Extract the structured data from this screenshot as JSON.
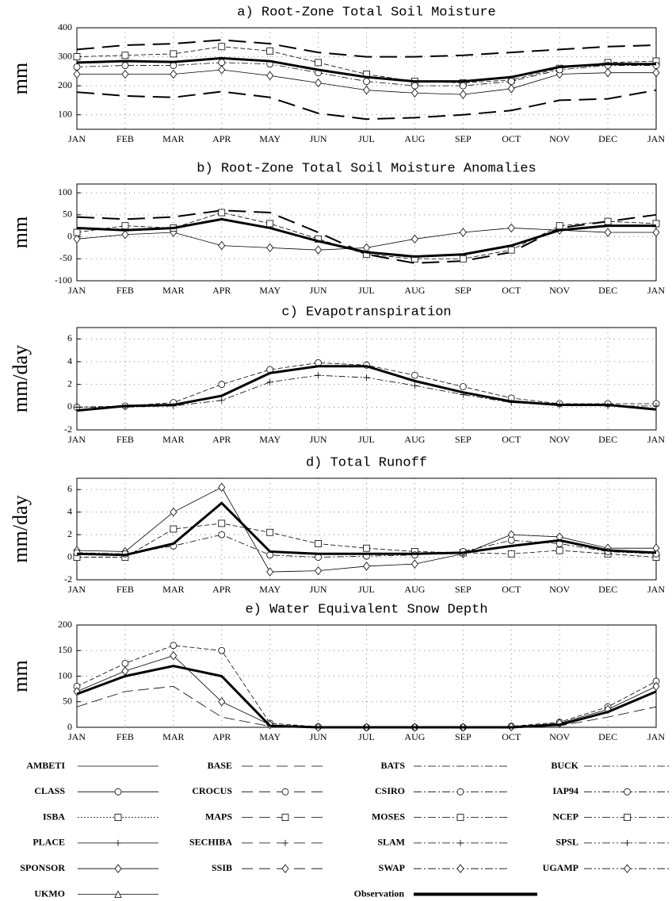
{
  "chart_data": [
    {
      "type": "line",
      "title": "a) Root-Zone Total Soil Moisture",
      "y_label": "mm",
      "categories": [
        "JAN",
        "FEB",
        "MAR",
        "APR",
        "MAY",
        "JUN",
        "JUL",
        "AUG",
        "SEP",
        "OCT",
        "NOV",
        "DEC",
        "JAN"
      ],
      "ylim": [
        50,
        400
      ],
      "yticks": [
        100,
        200,
        300,
        400
      ],
      "grid": true,
      "series": [
        {
          "color": "#000",
          "dash": "22 10",
          "width": 2,
          "marker": "none",
          "values": [
            325,
            340,
            345,
            358,
            345,
            315,
            300,
            300,
            305,
            315,
            325,
            335,
            340
          ]
        },
        {
          "color": "#000",
          "dash": "22 10",
          "width": 2,
          "marker": "none",
          "values": [
            178,
            165,
            160,
            180,
            160,
            105,
            85,
            90,
            100,
            115,
            150,
            155,
            185
          ]
        },
        {
          "color": "#000",
          "dash": "6 3",
          "width": 0.8,
          "marker": "square",
          "values": [
            300,
            305,
            310,
            335,
            320,
            280,
            240,
            215,
            210,
            220,
            260,
            280,
            285
          ]
        },
        {
          "color": "#000",
          "dash": "",
          "width": 0.8,
          "marker": "diamond",
          "values": [
            240,
            240,
            240,
            255,
            235,
            210,
            185,
            175,
            170,
            190,
            240,
            245,
            245
          ]
        },
        {
          "color": "#000",
          "dash": "8 3 2 3",
          "width": 0.8,
          "marker": "circle",
          "values": [
            265,
            270,
            270,
            280,
            275,
            245,
            215,
            200,
            200,
            215,
            255,
            270,
            270
          ]
        },
        {
          "name": "Observation",
          "color": "#000",
          "dash": "",
          "width": 3,
          "marker": "none",
          "values": [
            280,
            285,
            282,
            295,
            285,
            255,
            230,
            215,
            215,
            230,
            265,
            275,
            275
          ]
        }
      ]
    },
    {
      "type": "line",
      "title": "b) Root-Zone Total Soil Moisture Anomalies",
      "y_label": "mm",
      "categories": [
        "JAN",
        "FEB",
        "MAR",
        "APR",
        "MAY",
        "JUN",
        "JUL",
        "AUG",
        "SEP",
        "OCT",
        "NOV",
        "DEC",
        "JAN"
      ],
      "ylim": [
        -100,
        120
      ],
      "yticks": [
        -100,
        -50,
        0,
        50,
        100
      ],
      "grid": true,
      "series": [
        {
          "color": "#000",
          "dash": "22 10",
          "width": 2,
          "marker": "none",
          "values": [
            45,
            40,
            45,
            60,
            55,
            10,
            -40,
            -60,
            -55,
            -35,
            20,
            35,
            50
          ]
        },
        {
          "color": "#000",
          "dash": "",
          "width": 0.8,
          "marker": "diamond",
          "values": [
            -5,
            5,
            10,
            -20,
            -25,
            -30,
            -25,
            -5,
            10,
            20,
            15,
            10,
            10
          ]
        },
        {
          "color": "#000",
          "dash": "6 3",
          "width": 0.8,
          "marker": "square",
          "values": [
            10,
            25,
            20,
            55,
            30,
            -5,
            -40,
            -50,
            -50,
            -30,
            25,
            35,
            30
          ]
        },
        {
          "name": "Observation",
          "color": "#000",
          "dash": "",
          "width": 3,
          "marker": "none",
          "values": [
            20,
            15,
            20,
            40,
            20,
            -10,
            -35,
            -45,
            -40,
            -20,
            15,
            25,
            25
          ]
        }
      ]
    },
    {
      "type": "line",
      "title": "c) Evapotranspiration",
      "y_label": "mm/day",
      "categories": [
        "JAN",
        "FEB",
        "MAR",
        "APR",
        "MAY",
        "JUN",
        "JUL",
        "AUG",
        "SEP",
        "OCT",
        "NOV",
        "DEC",
        "JAN"
      ],
      "ylim": [
        -2,
        7
      ],
      "yticks": [
        -2,
        0,
        2,
        4,
        6
      ],
      "grid": true,
      "series": [
        {
          "color": "#000",
          "dash": "6 3",
          "width": 0.8,
          "marker": "circle",
          "values": [
            0,
            0.1,
            0.4,
            2,
            3.3,
            3.9,
            3.7,
            2.8,
            1.8,
            0.8,
            0.3,
            0.3,
            0.3
          ]
        },
        {
          "color": "#000",
          "dash": "8 3 2 3",
          "width": 0.8,
          "marker": "plus",
          "values": [
            0,
            0,
            0.1,
            0.6,
            2.2,
            2.8,
            2.6,
            1.9,
            1.1,
            0.4,
            0.2,
            0.1,
            0.1
          ]
        },
        {
          "name": "Observation",
          "color": "#000",
          "dash": "",
          "width": 3,
          "marker": "none",
          "values": [
            -0.3,
            0.1,
            0.2,
            1,
            3,
            3.6,
            3.6,
            2.3,
            1.3,
            0.5,
            0.2,
            0.2,
            -0.2
          ]
        }
      ]
    },
    {
      "type": "line",
      "title": "d) Total Runoff",
      "y_label": "mm/day",
      "categories": [
        "JAN",
        "FEB",
        "MAR",
        "APR",
        "MAY",
        "JUN",
        "JUL",
        "AUG",
        "SEP",
        "OCT",
        "NOV",
        "DEC",
        "JAN"
      ],
      "ylim": [
        -2,
        7
      ],
      "yticks": [
        -2,
        0,
        2,
        4,
        6
      ],
      "grid": true,
      "series": [
        {
          "color": "#000",
          "dash": "",
          "width": 0.8,
          "marker": "diamond",
          "values": [
            0.6,
            0.5,
            4,
            6.2,
            -1.3,
            -1.2,
            -0.8,
            -0.6,
            0.3,
            2,
            1.8,
            0.8,
            0.8
          ]
        },
        {
          "color": "#000",
          "dash": "6 3",
          "width": 0.8,
          "marker": "square",
          "values": [
            0,
            0,
            2.5,
            3,
            2.2,
            1.2,
            0.8,
            0.5,
            0.4,
            0.3,
            0.6,
            0.3,
            0
          ]
        },
        {
          "color": "#000",
          "dash": "8 3 2 3",
          "width": 0.8,
          "marker": "circle",
          "values": [
            0.4,
            0.3,
            1,
            2,
            0.2,
            0,
            0.1,
            0.2,
            0.5,
            1.5,
            1.2,
            0.5,
            0.3
          ]
        },
        {
          "name": "Observation",
          "color": "#000",
          "dash": "",
          "width": 3,
          "marker": "none",
          "values": [
            0.3,
            0.2,
            1.2,
            4.8,
            0.5,
            0.3,
            0.3,
            0.3,
            0.4,
            1,
            1.5,
            0.6,
            0.4
          ]
        }
      ]
    },
    {
      "type": "line",
      "title": "e) Water Equivalent Snow Depth",
      "y_label": "mm",
      "categories": [
        "JAN",
        "FEB",
        "MAR",
        "APR",
        "MAY",
        "JUN",
        "JUL",
        "AUG",
        "SEP",
        "OCT",
        "NOV",
        "DEC",
        "JAN"
      ],
      "ylim": [
        0,
        200
      ],
      "yticks": [
        0,
        50,
        100,
        150,
        200
      ],
      "grid": true,
      "series": [
        {
          "color": "#000",
          "dash": "6 3",
          "width": 0.8,
          "marker": "circle",
          "values": [
            80,
            125,
            160,
            150,
            8,
            1,
            0,
            0,
            0,
            2,
            10,
            40,
            90
          ]
        },
        {
          "color": "#000",
          "dash": "14 6",
          "width": 0.8,
          "marker": "none",
          "values": [
            40,
            70,
            80,
            20,
            2,
            0,
            0,
            0,
            0,
            0,
            3,
            20,
            40
          ]
        },
        {
          "color": "#000",
          "dash": "",
          "width": 0.8,
          "marker": "diamond",
          "values": [
            70,
            110,
            140,
            50,
            5,
            0,
            0,
            0,
            0,
            1,
            8,
            35,
            80
          ]
        },
        {
          "name": "Observation",
          "color": "#000",
          "dash": "",
          "width": 3,
          "marker": "none",
          "values": [
            65,
            100,
            120,
            100,
            3,
            0,
            0,
            0,
            0,
            0,
            5,
            30,
            70
          ]
        }
      ]
    }
  ],
  "legend": [
    {
      "name": "AMBETI",
      "dash": "",
      "marker": "none"
    },
    {
      "name": "BASE",
      "dash": "14 8",
      "marker": "none"
    },
    {
      "name": "BATS",
      "dash": "10 3 2 3",
      "marker": "none"
    },
    {
      "name": "BUCK",
      "dash": "10 3 2 3 2 3",
      "marker": "none"
    },
    {
      "name": "CLASS",
      "dash": "",
      "marker": "circle"
    },
    {
      "name": "CROCUS",
      "dash": "14 8",
      "marker": "circle"
    },
    {
      "name": "CSIRO",
      "dash": "10 3 2 3",
      "marker": "circle"
    },
    {
      "name": "IAP94",
      "dash": "10 3 2 3 2 3",
      "marker": "circle"
    },
    {
      "name": "ISBA",
      "dash": "2 2",
      "marker": "square"
    },
    {
      "name": "MAPS",
      "dash": "14 8",
      "marker": "square"
    },
    {
      "name": "MOSES",
      "dash": "10 3 2 3",
      "marker": "square"
    },
    {
      "name": "NCEP",
      "dash": "10 3 2 3 2 3",
      "marker": "square"
    },
    {
      "name": "PLACE",
      "dash": "",
      "marker": "plus"
    },
    {
      "name": "SECHIBA",
      "dash": "14 8",
      "marker": "plus"
    },
    {
      "name": "SLAM",
      "dash": "10 3 2 3",
      "marker": "plus"
    },
    {
      "name": "SPSL",
      "dash": "10 3 2 3 2 3",
      "marker": "plus"
    },
    {
      "name": "SPONSOR",
      "dash": "",
      "marker": "diamond"
    },
    {
      "name": "SSIB",
      "dash": "14 8",
      "marker": "diamond"
    },
    {
      "name": "SWAP",
      "dash": "10 3 2 3",
      "marker": "diamond"
    },
    {
      "name": "UGAMP",
      "dash": "10 3 2 3 2 3",
      "marker": "diamond"
    },
    {
      "name": "UKMO",
      "dash": "",
      "marker": "triangle"
    },
    {
      "name": "Observation",
      "dash": "",
      "marker": "none",
      "width": 4
    }
  ]
}
